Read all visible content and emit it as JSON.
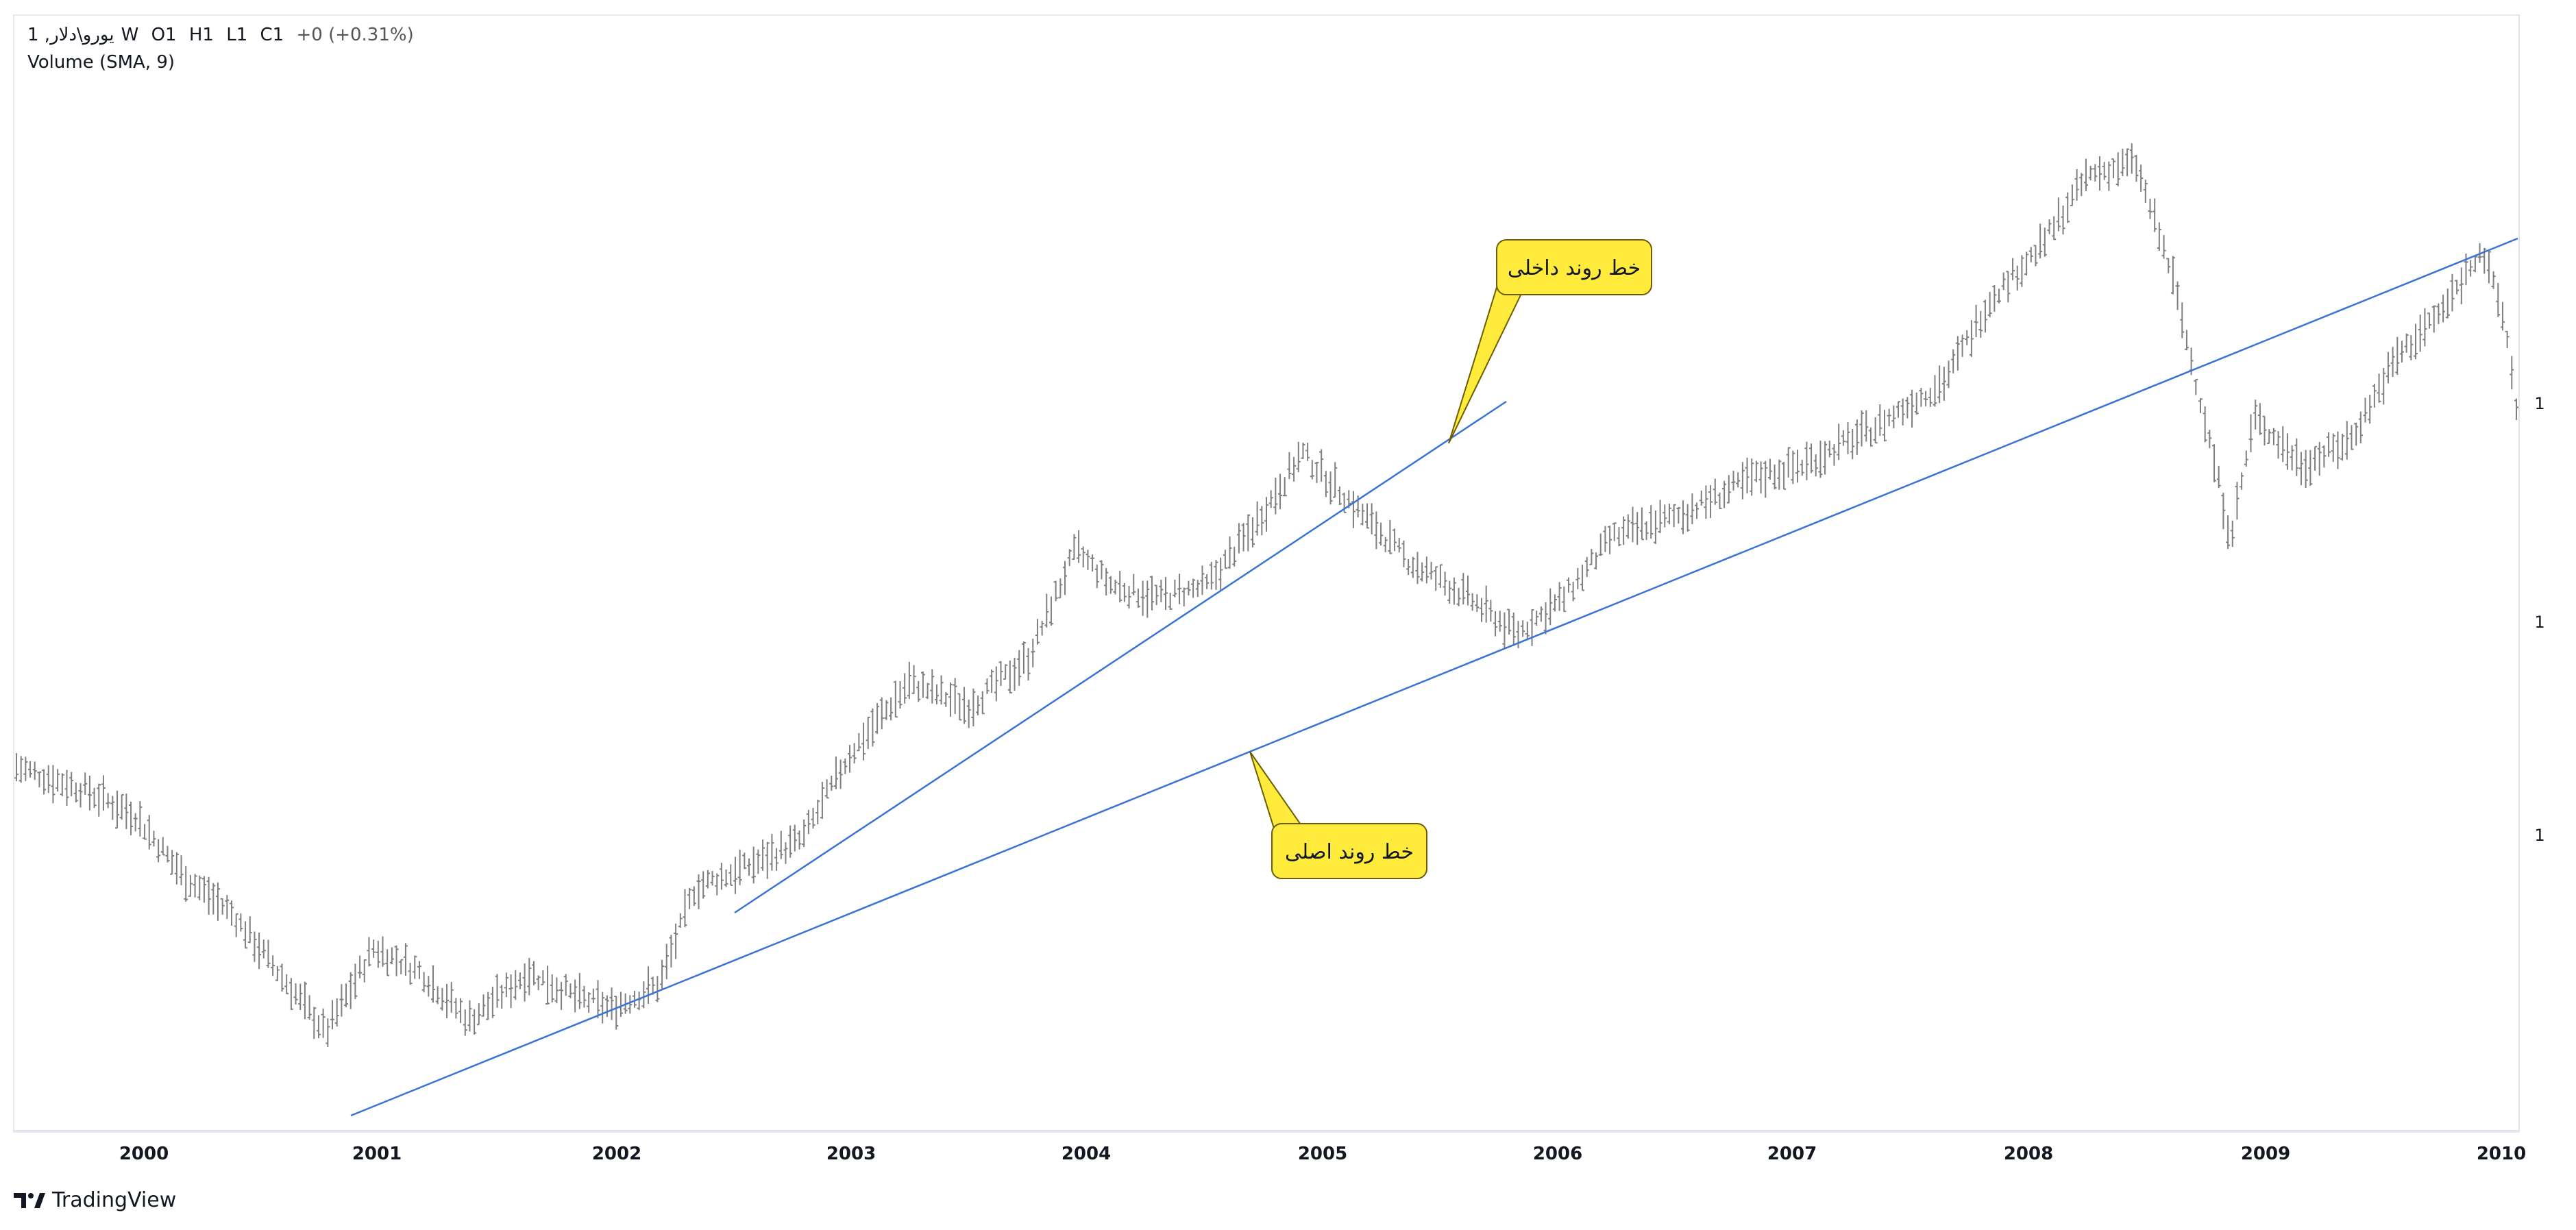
{
  "legend": {
    "symbol": "1 ,یورو\\دلار",
    "interval": "W",
    "open": "O1",
    "high": "H1",
    "low": "L1",
    "close": "C1",
    "change": "+0 (+0.31%)",
    "indicator": "Volume (SMA, 9)"
  },
  "price_labels": [
    "1",
    "1",
    "1"
  ],
  "branding": {
    "name": "TradingView"
  },
  "colors": {
    "bars": "#7f7f7f",
    "trendline": "#3a73d6",
    "callout_fill": "#ffeb3b",
    "callout_border": "#6b5d00"
  },
  "chart_data": {
    "type": "line",
    "chart_style": "ohlc-bars",
    "x_tick_labels": [
      "2000",
      "2001",
      "2002",
      "2003",
      "2004",
      "2005",
      "2006",
      "2007",
      "2008",
      "2009",
      "2010"
    ],
    "x_range": [
      1999.6,
      2010.1
    ],
    "y_range": [
      0.82,
      1.62
    ],
    "grid": false,
    "series": [
      {
        "values": [
          [
            1999.6,
            1.07
          ],
          [
            1999.9,
            1.05
          ],
          [
            2000.1,
            1.03
          ],
          [
            2000.3,
            0.98
          ],
          [
            2000.5,
            0.95
          ],
          [
            2000.7,
            0.9
          ],
          [
            2000.9,
            0.85
          ],
          [
            2001.1,
            0.92
          ],
          [
            2001.3,
            0.9
          ],
          [
            2001.5,
            0.86
          ],
          [
            2001.75,
            0.9
          ],
          [
            2001.95,
            0.88
          ],
          [
            2002.1,
            0.87
          ],
          [
            2002.3,
            0.89
          ],
          [
            2002.45,
            0.97
          ],
          [
            2002.7,
            0.99
          ],
          [
            2002.9,
            1.01
          ],
          [
            2003.1,
            1.08
          ],
          [
            2003.35,
            1.14
          ],
          [
            2003.6,
            1.12
          ],
          [
            2003.85,
            1.16
          ],
          [
            2004.05,
            1.25
          ],
          [
            2004.2,
            1.22
          ],
          [
            2004.4,
            1.21
          ],
          [
            2004.6,
            1.22
          ],
          [
            2004.8,
            1.27
          ],
          [
            2005.0,
            1.33
          ],
          [
            2005.2,
            1.29
          ],
          [
            2005.45,
            1.24
          ],
          [
            2005.7,
            1.21
          ],
          [
            2005.9,
            1.18
          ],
          [
            2006.1,
            1.21
          ],
          [
            2006.3,
            1.26
          ],
          [
            2006.6,
            1.28
          ],
          [
            2006.9,
            1.31
          ],
          [
            2007.1,
            1.32
          ],
          [
            2007.4,
            1.35
          ],
          [
            2007.7,
            1.39
          ],
          [
            2007.9,
            1.46
          ],
          [
            2008.1,
            1.5
          ],
          [
            2008.3,
            1.56
          ],
          [
            2008.5,
            1.57
          ],
          [
            2008.65,
            1.48
          ],
          [
            2008.8,
            1.35
          ],
          [
            2008.9,
            1.26
          ],
          [
            2009.0,
            1.36
          ],
          [
            2009.2,
            1.32
          ],
          [
            2009.4,
            1.34
          ],
          [
            2009.6,
            1.41
          ],
          [
            2009.8,
            1.45
          ],
          [
            2009.95,
            1.5
          ],
          [
            2010.05,
            1.44
          ],
          [
            2010.1,
            1.37
          ]
        ]
      }
    ],
    "annotations": [
      {
        "text": "خط روند داخلی",
        "type": "callout"
      },
      {
        "text": "خط روند اصلی",
        "type": "callout"
      }
    ]
  }
}
